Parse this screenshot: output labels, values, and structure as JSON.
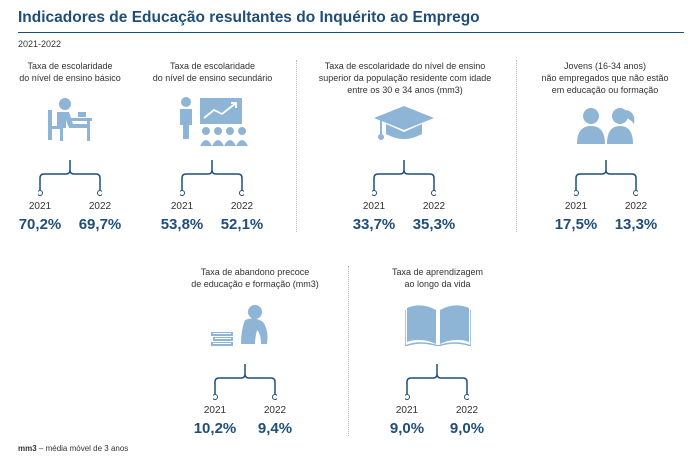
{
  "title": "Indicadores de Educação resultantes do Inquérito ao Emprego",
  "period": "2021-2022",
  "colors": {
    "accent": "#1f4e79",
    "icon": "#8eb4d6"
  },
  "indicators": [
    {
      "label1": "Taxa de escolaridade",
      "label2": "do nível de ensino básico",
      "label3": "",
      "icon": "student-at-desk-icon",
      "year1": "2021",
      "value1": "70,2%",
      "year2": "2022",
      "value2": "69,7%"
    },
    {
      "label1": "Taxa de escolaridade",
      "label2": "do nível de ensino secundário",
      "label3": "",
      "icon": "teacher-classroom-icon",
      "year1": "2021",
      "value1": "53,8%",
      "year2": "2022",
      "value2": "52,1%"
    },
    {
      "label1": "Taxa de escolaridade do nível de ensino",
      "label2": "superior da população residente com idade",
      "label3": "entre os 30 e 34 anos (mm3)",
      "icon": "graduation-cap-icon",
      "year1": "2021",
      "value1": "33,7%",
      "year2": "2022",
      "value2": "35,3%"
    },
    {
      "label1": "Jovens (16-34 anos)",
      "label2": "não empregados que não estão",
      "label3": "em educação ou formação",
      "icon": "two-youths-icon",
      "year1": "2021",
      "value1": "17,5%",
      "year2": "2022",
      "value2": "13,3%"
    },
    {
      "label1": "Taxa de abandono precoce",
      "label2": "de educação e formação (mm3)",
      "label3": "",
      "icon": "sad-student-books-icon",
      "year1": "2021",
      "value1": "10,2%",
      "year2": "2022",
      "value2": "9,4%"
    },
    {
      "label1": "Taxa de aprendizagem",
      "label2": "ao longo da vida",
      "label3": "",
      "icon": "open-book-icon",
      "year1": "2021",
      "value1": "9,0%",
      "year2": "2022",
      "value2": "9,0%"
    }
  ],
  "footnote": {
    "abbr": "mm3",
    "text": "– média móvel de 3 anos"
  }
}
